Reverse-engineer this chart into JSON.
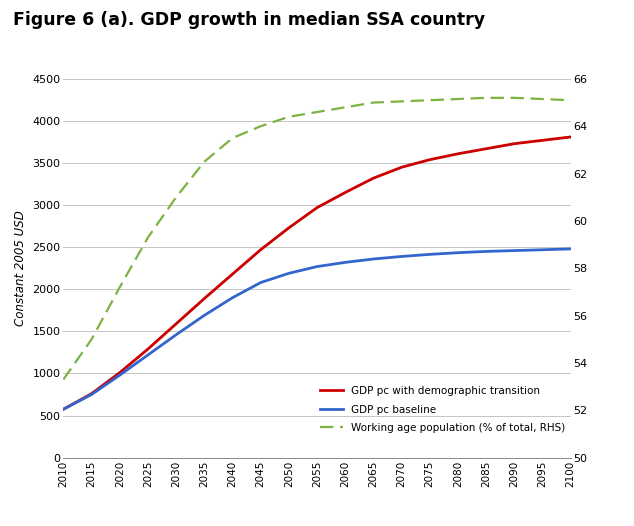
{
  "title": "Figure 6 (a). GDP growth in median SSA country",
  "ylabel_left": "Constant 2005 USD",
  "ylim_left": [
    0,
    4500
  ],
  "ylim_right": [
    50,
    66
  ],
  "yticks_left": [
    0,
    500,
    1000,
    1500,
    2000,
    2500,
    3000,
    3500,
    4000,
    4500
  ],
  "yticks_right": [
    50,
    52,
    54,
    56,
    58,
    60,
    62,
    64,
    66
  ],
  "xlim": [
    2010,
    2100
  ],
  "xticks": [
    2010,
    2015,
    2020,
    2025,
    2030,
    2035,
    2040,
    2045,
    2050,
    2055,
    2060,
    2065,
    2070,
    2075,
    2080,
    2085,
    2090,
    2095,
    2100
  ],
  "years": [
    2010,
    2015,
    2020,
    2025,
    2030,
    2035,
    2040,
    2045,
    2050,
    2055,
    2060,
    2065,
    2070,
    2075,
    2080,
    2085,
    2090,
    2095,
    2100
  ],
  "gdp_transition": [
    575,
    760,
    1010,
    1290,
    1590,
    1890,
    2180,
    2470,
    2730,
    2970,
    3150,
    3320,
    3450,
    3540,
    3610,
    3670,
    3730,
    3770,
    3810
  ],
  "gdp_baseline": [
    575,
    750,
    980,
    1220,
    1460,
    1690,
    1900,
    2080,
    2190,
    2270,
    2320,
    2360,
    2390,
    2415,
    2435,
    2450,
    2460,
    2470,
    2480
  ],
  "working_age_pop": [
    53.3,
    55.0,
    57.2,
    59.3,
    61.0,
    62.5,
    63.5,
    64.0,
    64.4,
    64.6,
    64.8,
    65.0,
    65.05,
    65.1,
    65.15,
    65.2,
    65.2,
    65.15,
    65.1
  ],
  "line_transition_color": "#CC0000",
  "line_baseline_color": "#3366CC",
  "line_working_color": "#7CB342",
  "legend_labels": [
    "GDP pc with demographic transition",
    "GDP pc baseline",
    "Working age population (% of total, RHS)"
  ],
  "background_color": "#ffffff",
  "grid_color": "#bbbbbb"
}
